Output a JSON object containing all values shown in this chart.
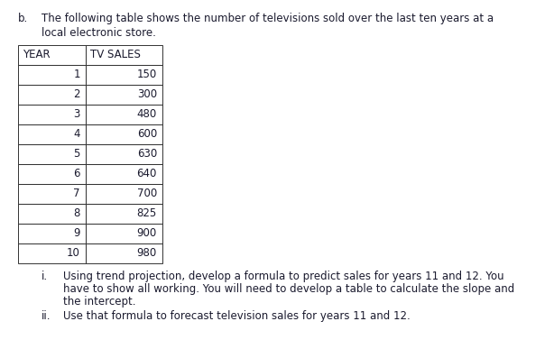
{
  "title_b": "b.",
  "title_line1": "The following table shows the number of televisions sold over the last ten years at a",
  "title_line2": "local electronic store.",
  "col_headers": [
    "YEAR",
    "TV SALES"
  ],
  "years": [
    1,
    2,
    3,
    4,
    5,
    6,
    7,
    8,
    9,
    10
  ],
  "tv_sales": [
    150,
    300,
    480,
    600,
    630,
    640,
    700,
    825,
    900,
    980
  ],
  "point_i_label": "i.",
  "point_i_line1": "Using trend projection, develop a formula to predict sales for years 11 and 12. You",
  "point_i_line2": "have to show all working. You will need to develop a table to calculate the slope and",
  "point_i_line3": "the intercept.",
  "point_ii_label": "ii.",
  "point_ii_text": "Use that formula to forecast television sales for years 11 and 12.",
  "bg_color": "#ffffff",
  "text_color": "#1a1a2e",
  "table_line_color": "#333333",
  "font_size": 8.5,
  "table_font_size": 8.5,
  "fig_width": 6.14,
  "fig_height": 3.87,
  "dpi": 100
}
